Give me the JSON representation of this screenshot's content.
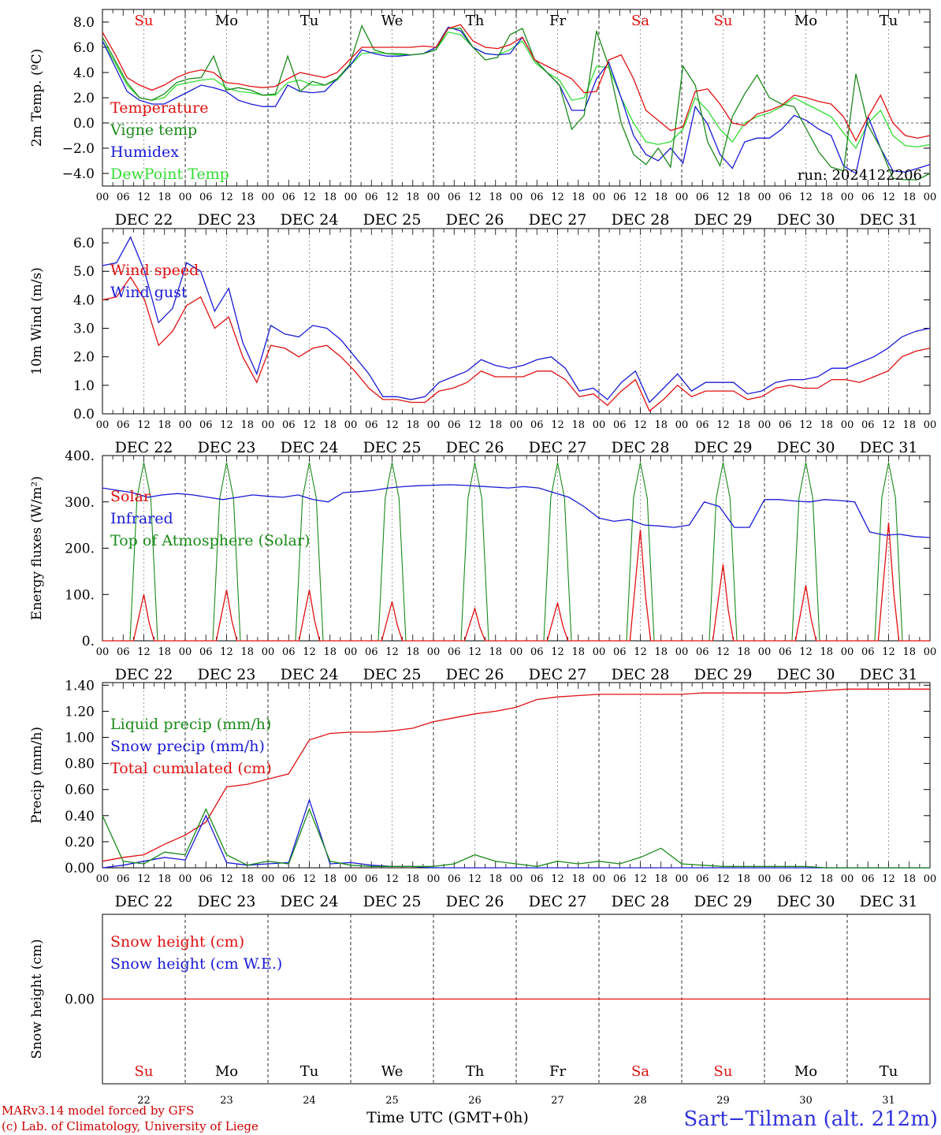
{
  "colors": {
    "red": "#e01010",
    "green": "#1a8a1a",
    "blue": "#1a1ad8",
    "lightgreen": "#33dd33",
    "footer_red": "#cc0000",
    "station_blue": "#3333dd"
  },
  "day_names": [
    "Su",
    "Mo",
    "Tu",
    "We",
    "Th",
    "Fr",
    "Sa",
    "Su",
    "Mo",
    "Tu"
  ],
  "weekend_days": [
    0,
    6,
    7
  ],
  "date_labels": [
    "DEC 22",
    "DEC 23",
    "DEC 24",
    "DEC 25",
    "DEC 26",
    "DEC 27",
    "DEC 28",
    "DEC 29",
    "DEC 30",
    "DEC 31"
  ],
  "hour_labels": [
    "00",
    "06",
    "12",
    "18"
  ],
  "final_hour_label": "00",
  "bottom_day_numbers": [
    "22",
    "23",
    "24",
    "25",
    "26",
    "27",
    "28",
    "29",
    "30",
    "31"
  ],
  "x_axis_title": "Time UTC (GMT+0h)",
  "footer": {
    "line1": "MARv3.14 model forced by GFS",
    "line2": "(c) Lab. of Climatology, University of Liege",
    "station": "Sart−Tilman (alt. 212m)"
  },
  "run_label": "run: 2024122206",
  "chart_data": [
    {
      "type": "line",
      "id": "temperature",
      "ylabel": "2m Temp. (ºC)",
      "ylim": [
        -5,
        9
      ],
      "yticks": [
        -4,
        -2,
        0,
        2,
        4,
        6,
        8
      ],
      "ytick_labels": [
        "−4.0",
        "−2.0",
        "0.0",
        "2.0",
        "4.0",
        "6.0",
        "8.0"
      ],
      "reference_line": 0,
      "x_hours_range": [
        0,
        240
      ],
      "x_step_hours": 6,
      "series": [
        {
          "name": "Temperature",
          "color": "#e01010",
          "values": [
            7.2,
            5.5,
            3.6,
            3.0,
            2.6,
            3.0,
            3.6,
            4.0,
            4.2,
            4.0,
            3.2,
            3.1,
            2.9,
            2.8,
            2.9,
            3.5,
            4.0,
            3.8,
            3.6,
            4.0,
            5.0,
            6.0,
            6.0,
            6.0,
            6.0,
            6.0,
            6.1,
            6.0,
            7.5,
            7.8,
            6.5,
            6.0,
            5.9,
            6.2,
            6.8,
            5.0,
            4.5,
            4.0,
            3.5,
            2.4,
            2.5,
            5.0,
            5.4,
            3.5,
            1.0,
            0.2,
            -0.6,
            -0.3,
            2.5,
            2.7,
            1.5,
            0.0,
            -0.2,
            0.7,
            1.0,
            1.4,
            2.2,
            2.0,
            1.7,
            1.5,
            0.5,
            -1.4,
            0.5,
            2.2,
            0.0,
            -1.0,
            -1.2,
            -1.0
          ]
        },
        {
          "name": "Vigne temp",
          "color": "#1a8a1a",
          "values": [
            6.8,
            5.0,
            3.2,
            2.0,
            1.8,
            2.3,
            3.2,
            3.5,
            3.6,
            5.3,
            2.6,
            2.8,
            2.6,
            2.2,
            2.3,
            5.3,
            2.5,
            3.3,
            3.0,
            3.5,
            4.6,
            7.7,
            5.8,
            5.5,
            5.5,
            5.4,
            5.5,
            5.8,
            7.5,
            7.5,
            6.0,
            5.0,
            5.2,
            7.0,
            7.5,
            5.0,
            4.0,
            3.0,
            -0.5,
            0.6,
            7.3,
            4.5,
            0.0,
            -2.5,
            -3.3,
            -2.0,
            -3.5,
            4.5,
            3.0,
            -1.5,
            -3.4,
            0.5,
            2.3,
            3.8,
            2.0,
            1.5,
            1.3,
            -0.5,
            -2.3,
            -3.5,
            -3.8,
            3.9,
            -0.2,
            -2.0,
            -4.4,
            -4.5,
            -4.5,
            -4.0
          ]
        },
        {
          "name": "Humidex",
          "color": "#1a1ad8",
          "values": [
            6.5,
            4.5,
            2.5,
            1.8,
            1.5,
            1.5,
            2.0,
            2.5,
            3.0,
            2.8,
            2.5,
            1.8,
            1.5,
            1.3,
            1.3,
            3.0,
            2.5,
            2.4,
            2.5,
            3.5,
            4.5,
            5.8,
            5.5,
            5.3,
            5.3,
            5.4,
            5.5,
            6.0,
            7.6,
            7.3,
            6.0,
            5.5,
            5.4,
            5.5,
            6.8,
            5.0,
            4.0,
            3.0,
            1.0,
            1.0,
            3.5,
            4.8,
            2.0,
            -1.0,
            -2.5,
            -3.0,
            -2.0,
            -3.2,
            1.3,
            -0.1,
            -2.5,
            -3.6,
            -1.5,
            -1.2,
            -1.2,
            -0.5,
            0.6,
            0.2,
            -0.5,
            -1.0,
            -3.4,
            -4.0,
            0.5,
            -2.0,
            -3.8,
            -3.9,
            -3.6,
            -3.3
          ]
        },
        {
          "name": "DewPoint Temp",
          "color": "#33dd33",
          "values": [
            6.5,
            4.8,
            3.0,
            2.0,
            1.8,
            2.0,
            3.0,
            3.2,
            3.4,
            3.5,
            2.8,
            2.5,
            2.4,
            2.2,
            2.2,
            3.2,
            3.4,
            3.0,
            3.0,
            3.4,
            4.5,
            5.5,
            5.6,
            5.5,
            5.4,
            5.4,
            5.5,
            5.8,
            7.2,
            7.0,
            6.0,
            5.5,
            5.4,
            5.8,
            6.5,
            4.8,
            4.0,
            3.4,
            1.8,
            2.0,
            4.5,
            4.4,
            2.0,
            0.0,
            -1.5,
            -1.7,
            -1.5,
            -0.5,
            2.0,
            1.0,
            -0.5,
            -1.5,
            0.0,
            0.5,
            0.8,
            1.3,
            2.0,
            1.5,
            1.0,
            0.5,
            -0.8,
            -2.0,
            0.0,
            1.0,
            -1.0,
            -1.8,
            -1.9,
            -1.7
          ]
        }
      ]
    },
    {
      "type": "line",
      "id": "wind",
      "ylabel": "10m Wind (m/s)",
      "ylim": [
        0,
        6.5
      ],
      "yticks": [
        0,
        1,
        2,
        3,
        4,
        5,
        6
      ],
      "ytick_labels": [
        "0.0",
        "1.0",
        "2.0",
        "3.0",
        "4.0",
        "5.0",
        "6.0"
      ],
      "reference_line": 5,
      "x_hours_range": [
        0,
        240
      ],
      "x_step_hours": 6,
      "series": [
        {
          "name": "Wind speed",
          "color": "#e01010",
          "values": [
            4.0,
            4.1,
            4.8,
            4.0,
            2.4,
            2.9,
            3.8,
            4.1,
            3.0,
            3.4,
            2.0,
            1.1,
            2.4,
            2.3,
            2.0,
            2.3,
            2.4,
            2.0,
            1.5,
            0.9,
            0.5,
            0.5,
            0.4,
            0.4,
            0.8,
            0.9,
            1.1,
            1.5,
            1.3,
            1.3,
            1.3,
            1.5,
            1.5,
            1.2,
            0.6,
            0.7,
            0.3,
            0.8,
            1.2,
            0.1,
            0.5,
            1.0,
            0.6,
            0.8,
            0.8,
            0.8,
            0.5,
            0.6,
            0.9,
            1.0,
            0.9,
            0.9,
            1.2,
            1.2,
            1.1,
            1.3,
            1.5,
            2.0,
            2.2,
            2.3
          ]
        },
        {
          "name": "Wind gust",
          "color": "#1a1ad8",
          "values": [
            5.2,
            5.3,
            6.2,
            5.0,
            3.2,
            3.7,
            5.3,
            5.0,
            3.6,
            4.4,
            2.5,
            1.4,
            3.1,
            2.8,
            2.7,
            3.1,
            3.0,
            2.6,
            2.0,
            1.4,
            0.6,
            0.6,
            0.5,
            0.6,
            1.1,
            1.3,
            1.5,
            1.9,
            1.7,
            1.6,
            1.7,
            1.9,
            2.0,
            1.6,
            0.8,
            0.9,
            0.5,
            1.1,
            1.5,
            0.4,
            0.9,
            1.4,
            0.8,
            1.1,
            1.1,
            1.1,
            0.7,
            0.8,
            1.1,
            1.2,
            1.2,
            1.3,
            1.6,
            1.6,
            1.8,
            2.0,
            2.3,
            2.7,
            2.9,
            3.0
          ]
        }
      ]
    },
    {
      "type": "line",
      "id": "energy",
      "ylabel": "Energy fluxes (W/m²)",
      "ylim": [
        0,
        400
      ],
      "yticks": [
        0,
        100,
        200,
        300,
        400
      ],
      "ytick_labels": [
        "0.",
        "100.",
        "200.",
        "300.",
        "400."
      ],
      "x_hours_range": [
        0,
        240
      ],
      "x_step_hours": 6,
      "series": [
        {
          "name": "Solar",
          "color": "#e01010",
          "values": [
            0,
            0,
            0,
            0,
            0,
            0,
            0,
            50,
            100,
            20,
            0,
            0,
            0,
            0,
            0,
            0,
            0,
            0,
            0,
            0,
            0,
            0,
            0,
            0,
            0,
            0,
            0,
            0,
            0,
            0,
            0,
            0,
            0,
            0,
            0,
            0,
            0,
            0,
            0,
            0,
            0,
            0,
            0,
            0,
            0,
            0,
            0,
            0,
            0,
            0,
            0,
            0,
            0,
            0,
            0,
            0,
            0,
            0,
            0,
            0,
            0,
            0,
            0,
            0,
            0,
            0,
            0,
            0,
            0,
            0,
            0,
            0,
            0,
            0,
            0,
            0,
            0,
            0,
            0,
            0,
            0
          ]
        },
        {
          "name": "Infrared",
          "color": "#1a1ad8",
          "values": [
            330,
            325,
            320,
            310,
            315,
            318,
            315,
            310,
            305,
            310,
            315,
            312,
            310,
            315,
            305,
            300,
            320,
            322,
            325,
            330,
            333,
            335,
            336,
            337,
            336,
            334,
            332,
            330,
            333,
            330,
            320,
            310,
            290,
            265,
            258,
            262,
            250,
            248,
            245,
            250,
            300,
            290,
            245,
            245,
            305,
            305,
            302,
            300,
            305,
            303,
            300,
            235,
            228,
            230,
            225,
            223
          ]
        },
        {
          "name": "Top of Atmosphere (Solar)",
          "color": "#1a8a1a",
          "values": [
            0,
            0,
            0,
            0,
            0,
            0,
            0,
            0,
            0,
            0,
            0,
            0,
            0,
            0,
            0,
            0,
            0,
            0,
            0,
            0,
            0,
            0,
            0,
            0,
            0,
            0,
            0,
            0,
            0,
            0,
            0,
            0,
            0,
            0,
            0,
            0,
            0,
            0,
            0,
            0,
            0
          ]
        }
      ],
      "solar_peaks": [
        100,
        110,
        110,
        85,
        70,
        82,
        240,
        165,
        120,
        255
      ],
      "toa_peak": 385
    },
    {
      "type": "line",
      "id": "precip",
      "ylabel": "Precip (mm/h)",
      "ylim": [
        0,
        1.42
      ],
      "yticks": [
        0,
        0.2,
        0.4,
        0.6,
        0.8,
        1.0,
        1.2,
        1.4
      ],
      "ytick_labels": [
        "0.00",
        "0.20",
        "0.40",
        "0.60",
        "0.80",
        "1.00",
        "1.20",
        "1.40"
      ],
      "x_hours_range": [
        0,
        240
      ],
      "x_step_hours": 6,
      "series": [
        {
          "name": "Liquid precip (mm/h)",
          "color": "#1a8a1a",
          "values": [
            0.4,
            0.05,
            0.03,
            0.12,
            0.1,
            0.45,
            0.1,
            0.02,
            0.05,
            0.03,
            0.45,
            0.05,
            0.02,
            0.01,
            0.01,
            0.01,
            0.01,
            0.03,
            0.1,
            0.05,
            0.03,
            0.01,
            0.05,
            0.03,
            0.05,
            0.03,
            0.08,
            0.15,
            0.03,
            0.02,
            0.01,
            0.01,
            0.01,
            0.01,
            0.01,
            0.0,
            0.0,
            0.0,
            0.0,
            0.0,
            0.0
          ]
        },
        {
          "name": "Snow precip (mm/h)",
          "color": "#1a1ad8",
          "values": [
            0.0,
            0.02,
            0.05,
            0.08,
            0.06,
            0.4,
            0.04,
            0.02,
            0.03,
            0.04,
            0.52,
            0.03,
            0.04,
            0.02,
            0.01,
            0.01,
            0.0,
            0.0,
            0.0,
            0.0,
            0.0,
            0.0,
            0.0,
            0.0,
            0.0,
            0.0,
            0.0,
            0.0,
            0.0,
            0.0,
            0.0,
            0.0,
            0.0,
            0.0,
            0.0,
            0.0,
            0.0,
            0.0,
            0.0,
            0.0,
            0.0
          ]
        },
        {
          "name": "Total cumulated (cm)",
          "color": "#e01010",
          "values": [
            0.05,
            0.08,
            0.1,
            0.18,
            0.25,
            0.35,
            0.62,
            0.64,
            0.68,
            0.72,
            0.98,
            1.03,
            1.04,
            1.04,
            1.05,
            1.07,
            1.12,
            1.15,
            1.18,
            1.2,
            1.23,
            1.29,
            1.31,
            1.32,
            1.33,
            1.33,
            1.33,
            1.33,
            1.33,
            1.34,
            1.34,
            1.34,
            1.34,
            1.34,
            1.35,
            1.36,
            1.37,
            1.37,
            1.37,
            1.37,
            1.37
          ]
        }
      ]
    },
    {
      "type": "line",
      "id": "snow",
      "ylabel": "Snow height (cm)",
      "ytick_labels": [
        "0.00"
      ],
      "yticks": [
        0
      ],
      "ylim": [
        -1,
        1
      ],
      "x_hours_range": [
        0,
        240
      ],
      "series": [
        {
          "name": "Snow height (cm)",
          "color": "#e01010",
          "values": [
            0,
            0
          ]
        },
        {
          "name": "Snow height (cm W.E.)",
          "color": "#1a1ad8",
          "values": []
        }
      ]
    }
  ]
}
